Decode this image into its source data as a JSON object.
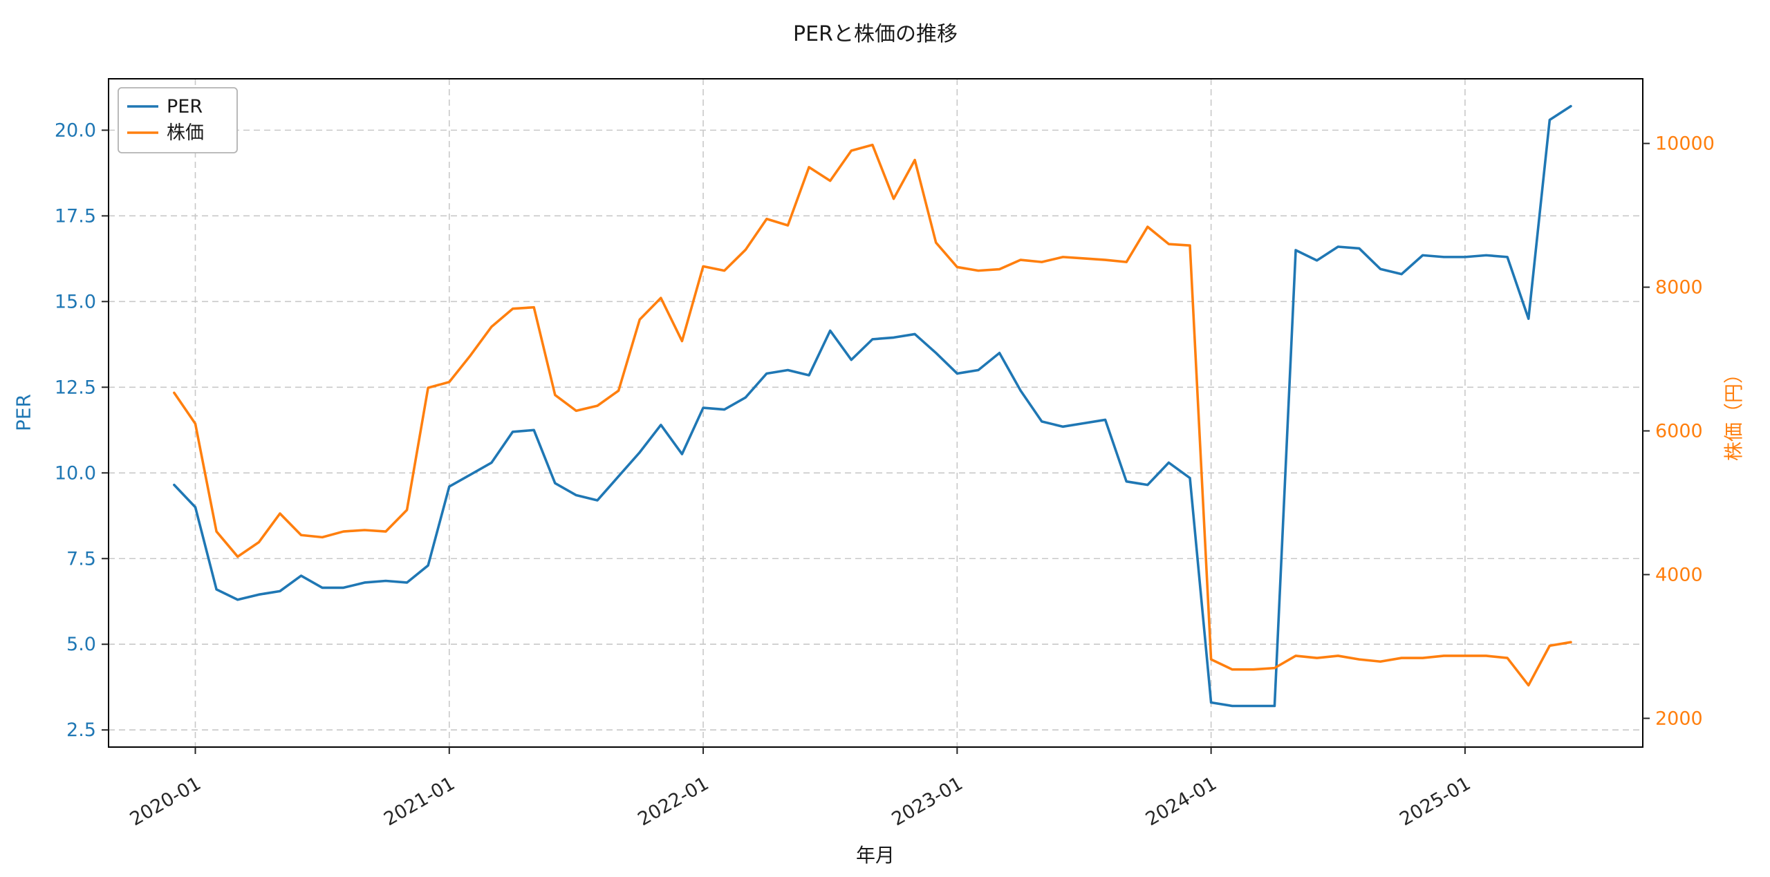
{
  "title": "PERと株価の推移",
  "xlabel": "年月",
  "ylabel_left": "PER",
  "ylabel_right": "株価（円）",
  "colors": {
    "per_line": "#1f77b4",
    "price_line": "#ff7f0e",
    "grid": "#c8c8c8",
    "axis_text": "#262626",
    "spine": "#000000",
    "legend_border": "#b3b3b3",
    "background": "#ffffff"
  },
  "axes": {
    "y_left_ticks": [
      2.5,
      5.0,
      7.5,
      10.0,
      12.5,
      15.0,
      17.5,
      20.0
    ],
    "y_right_ticks": [
      2000,
      4000,
      6000,
      8000,
      10000
    ],
    "x_ticks": [
      "2020-01",
      "2021-01",
      "2022-01",
      "2023-01",
      "2024-01",
      "2025-01"
    ],
    "y_left_lim": [
      2.0,
      21.5
    ],
    "y_right_lim": [
      1600,
      10900
    ],
    "grid": true,
    "x_tick_rotation": -30
  },
  "chart_data": {
    "type": "line",
    "title": "PERと株価の推移",
    "xlabel": "年月",
    "ylabel_left": "PER",
    "ylabel_right": "株価（円）",
    "legend_position": "upper left",
    "grid": true,
    "x": [
      "2019-12",
      "2020-01",
      "2020-02",
      "2020-03",
      "2020-04",
      "2020-05",
      "2020-06",
      "2020-07",
      "2020-08",
      "2020-09",
      "2020-10",
      "2020-11",
      "2020-12",
      "2021-01",
      "2021-02",
      "2021-03",
      "2021-04",
      "2021-05",
      "2021-06",
      "2021-07",
      "2021-08",
      "2021-09",
      "2021-10",
      "2021-11",
      "2021-12",
      "2022-01",
      "2022-02",
      "2022-03",
      "2022-04",
      "2022-05",
      "2022-06",
      "2022-07",
      "2022-08",
      "2022-09",
      "2022-10",
      "2022-11",
      "2022-12",
      "2023-01",
      "2023-02",
      "2023-03",
      "2023-04",
      "2023-05",
      "2023-06",
      "2023-07",
      "2023-08",
      "2023-09",
      "2023-10",
      "2023-11",
      "2023-12",
      "2024-01",
      "2024-02",
      "2024-03",
      "2024-04",
      "2024-05",
      "2024-06",
      "2024-07",
      "2024-08",
      "2024-09",
      "2024-10",
      "2024-11",
      "2024-12",
      "2025-01",
      "2025-02",
      "2025-03",
      "2025-04",
      "2025-05",
      "2025-06"
    ],
    "series": [
      {
        "name": "PER",
        "axis": "left",
        "color": "#1f77b4",
        "values": [
          9.65,
          9.0,
          6.6,
          6.3,
          6.45,
          6.55,
          7.0,
          6.65,
          6.65,
          6.8,
          6.85,
          6.8,
          7.3,
          9.6,
          9.95,
          10.3,
          11.2,
          11.25,
          9.7,
          9.35,
          9.2,
          9.9,
          10.6,
          11.4,
          10.55,
          11.9,
          11.85,
          12.2,
          12.9,
          13.0,
          12.85,
          14.15,
          13.3,
          13.9,
          13.95,
          14.05,
          13.5,
          12.9,
          13.0,
          13.5,
          12.4,
          11.5,
          11.35,
          11.45,
          11.55,
          9.75,
          9.65,
          10.3,
          9.85,
          3.3,
          3.2,
          3.2,
          3.2,
          16.5,
          16.2,
          16.6,
          16.55,
          15.95,
          15.8,
          16.35,
          16.3,
          16.3,
          16.35,
          16.3,
          14.5,
          20.3,
          20.7
        ]
      },
      {
        "name": "株価",
        "axis": "right",
        "color": "#ff7f0e",
        "values": [
          6530,
          6100,
          4600,
          4250,
          4450,
          4850,
          4550,
          4520,
          4600,
          4620,
          4600,
          4900,
          6600,
          6680,
          7050,
          7450,
          7700,
          7720,
          6500,
          6280,
          6350,
          6560,
          7550,
          7850,
          7250,
          8290,
          8230,
          8520,
          8950,
          8860,
          9670,
          9480,
          9900,
          9980,
          9230,
          9770,
          8620,
          8280,
          8230,
          8250,
          8380,
          8350,
          8420,
          8400,
          8380,
          8350,
          8840,
          8600,
          8580,
          2820,
          2680,
          2680,
          2700,
          2870,
          2840,
          2870,
          2820,
          2790,
          2840,
          2840,
          2870,
          2870,
          2870,
          2840,
          2460,
          3010,
          3060
        ]
      }
    ]
  }
}
